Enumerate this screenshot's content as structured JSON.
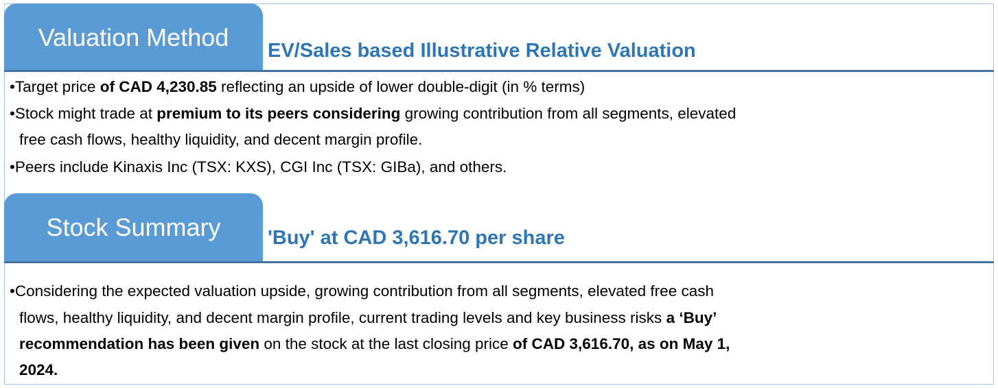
{
  "valuation": {
    "tab_label": "Valuation Method",
    "subtitle": "EV/Sales based Illustrative Relative Valuation",
    "bullets": [
      {
        "pre": "Target price ",
        "bold": "of CAD 4,230.85",
        "post": " reflecting an upside of lower double-digit (in % terms)"
      },
      {
        "pre": "Stock might trade at ",
        "bold": "premium to its peers considering",
        "post": " growing contribution from all segments, elevated",
        "cont": "free cash flows, healthy liquidity, and decent margin profile."
      },
      {
        "pre": "Peers include Kinaxis Inc (TSX: KXS), CGI Inc (TSX: GIBa), and others."
      }
    ]
  },
  "summary": {
    "tab_label": "Stock Summary",
    "subtitle": "'Buy' at CAD 3,616.70 per share",
    "line1": "Considering the expected valuation upside, growing contribution from all segments, elevated free cash",
    "line2": "flows, healthy liquidity, and decent margin profile, current trading levels and key business risks ",
    "line2_bold": "a ‘Buy’",
    "line3_bold": "recommendation has been given",
    "line3": " on the stock at the last closing price ",
    "line3_bold2": "of CAD 3,616.70, as on May 1,",
    "line4_bold": "2024."
  },
  "colors": {
    "tab": "#5b9bd5",
    "subtitle": "#2e75b6",
    "rule": "#41719c",
    "border": "#9dc3e6"
  }
}
